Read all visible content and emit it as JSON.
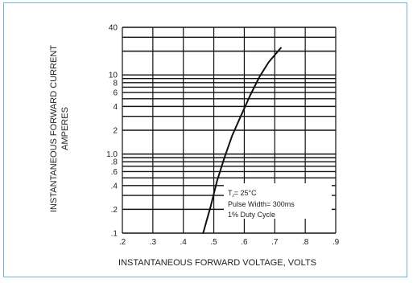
{
  "chart_data": {
    "type": "line",
    "xlabel": "INSTANTANEOUS FORWARD VOLTAGE, VOLTS",
    "ylabel_lines": [
      "INSTANTANEOUS FORWARD CURRENT",
      "AMPERES"
    ],
    "xlim": [
      0.2,
      0.9
    ],
    "ylim": [
      0.1,
      40
    ],
    "y_scale": "log",
    "grid": true,
    "x_ticks": [
      ".2",
      ".3",
      ".4",
      ".5",
      ".6",
      ".7",
      ".8",
      ".9"
    ],
    "x_tick_values": [
      0.2,
      0.3,
      0.4,
      0.5,
      0.6,
      0.7,
      0.8,
      0.9
    ],
    "y_ticks": [
      "40",
      "10",
      "8",
      "6",
      "4",
      "2",
      "1.0",
      ".8",
      ".6",
      ".4",
      ".2",
      ".1"
    ],
    "y_tick_values": [
      40,
      10,
      8,
      6,
      4,
      2,
      1,
      0.8,
      0.6,
      0.4,
      0.2,
      0.1
    ],
    "series": [
      {
        "x": [
          0.465,
          0.49,
          0.51,
          0.535,
          0.56,
          0.59,
          0.62,
          0.65,
          0.68,
          0.72
        ],
        "y": [
          0.1,
          0.22,
          0.45,
          0.9,
          1.7,
          3.1,
          5.6,
          9.5,
          14.5,
          22
        ]
      }
    ],
    "annotation_lines": [
      "T⁁= 25°C",
      "Pulse Width= 300ms",
      "1% Duty Cycle"
    ]
  },
  "colors": {
    "frame_border": "#6fb4d6",
    "grid": "#111111",
    "curve": "#111111"
  }
}
